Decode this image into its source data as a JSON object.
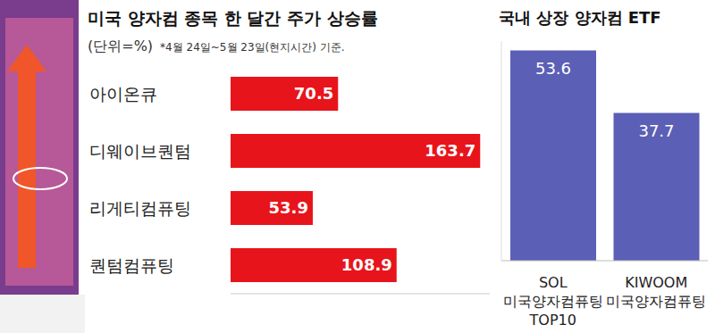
{
  "chart_data": [
    {
      "type": "bar",
      "orientation": "horizontal",
      "title": "미국 양자컴 종목 한 달간 주가 상승률",
      "subtitle": "(단위=%)",
      "annotation": "*4월 24일~5월 23일(현지시간) 기준.",
      "categories": [
        "아이온큐",
        "디웨이브퀀텀",
        "리게티컴퓨팅",
        "퀀텀컴퓨팅"
      ],
      "values": [
        70.5,
        163.7,
        53.9,
        108.9
      ],
      "color": "#e8141b",
      "xlim": [
        0,
        170
      ],
      "data_labels": true,
      "tick_labels": "y"
    },
    {
      "type": "bar",
      "title": "국내 상장 양자컴 ETF",
      "categories": [
        "SOL 미국양자컴퓨팅 TOP10",
        "KIWOOM 미국양자컴퓨팅"
      ],
      "values": [
        53.6,
        37.7
      ],
      "color": "#5b5fb6",
      "ylim": [
        0,
        56
      ],
      "data_labels": true,
      "tick_labels": "x"
    }
  ]
}
